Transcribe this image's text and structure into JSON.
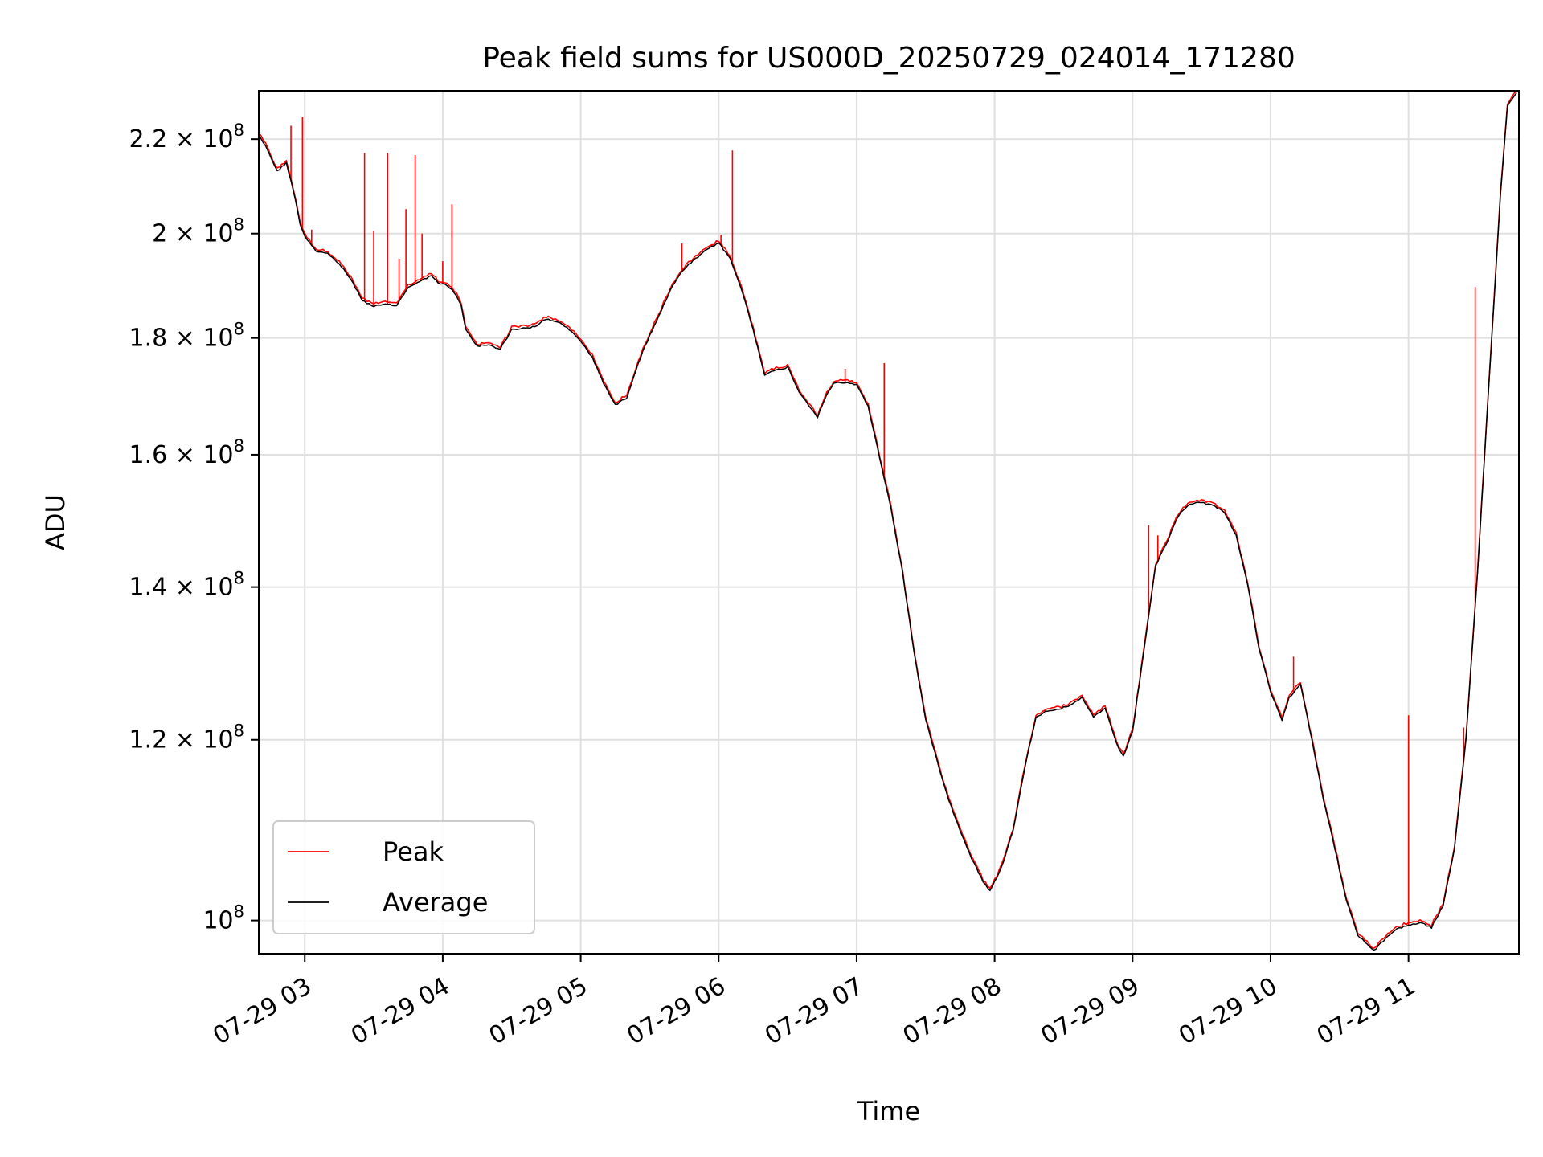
{
  "chart_data": {
    "type": "line",
    "title": "Peak field sums for US000D_20250729_024014_171280",
    "xlabel": "Time",
    "ylabel": "ADU",
    "yscale": "log",
    "xlim": [
      "2025-07-29 02:40",
      "2025-07-29 11:48"
    ],
    "ylim": [
      96700000,
      231000000
    ],
    "grid": true,
    "legend_position": "lower-left",
    "x_ticks": [
      {
        "t": "2025-07-29 03:00",
        "label": "07-29 03"
      },
      {
        "t": "2025-07-29 04:00",
        "label": "07-29 04"
      },
      {
        "t": "2025-07-29 05:00",
        "label": "07-29 05"
      },
      {
        "t": "2025-07-29 06:00",
        "label": "07-29 06"
      },
      {
        "t": "2025-07-29 07:00",
        "label": "07-29 07"
      },
      {
        "t": "2025-07-29 08:00",
        "label": "07-29 08"
      },
      {
        "t": "2025-07-29 09:00",
        "label": "07-29 09"
      },
      {
        "t": "2025-07-29 10:00",
        "label": "07-29 10"
      },
      {
        "t": "2025-07-29 11:00",
        "label": "07-29 11"
      }
    ],
    "y_ticks": [
      {
        "value": 100000000,
        "mantissa": "",
        "base": "10",
        "exp": "8"
      },
      {
        "value": 120000000,
        "mantissa": "1.2",
        "base": "10",
        "exp": "8"
      },
      {
        "value": 140000000,
        "mantissa": "1.4",
        "base": "10",
        "exp": "8"
      },
      {
        "value": 160000000,
        "mantissa": "1.6",
        "base": "10",
        "exp": "8"
      },
      {
        "value": 180000000,
        "mantissa": "1.8",
        "base": "10",
        "exp": "8"
      },
      {
        "value": 200000000,
        "mantissa": "2",
        "base": "10",
        "exp": "8"
      },
      {
        "value": 220000000,
        "mantissa": "2.2",
        "base": "10",
        "exp": "8"
      }
    ],
    "series": [
      {
        "name": "Average",
        "color": "#000000",
        "points": [
          [
            "2025-07-29 02:40",
            221000000
          ],
          [
            "2025-07-29 02:44",
            217500000
          ],
          [
            "2025-07-29 02:48",
            213000000
          ],
          [
            "2025-07-29 02:52",
            214800000
          ],
          [
            "2025-07-29 02:55",
            209000000
          ],
          [
            "2025-07-29 02:58",
            202000000
          ],
          [
            "2025-07-29 03:00",
            199500000
          ],
          [
            "2025-07-29 03:05",
            196500000
          ],
          [
            "2025-07-29 03:10",
            196000000
          ],
          [
            "2025-07-29 03:15",
            194000000
          ],
          [
            "2025-07-29 03:20",
            191000000
          ],
          [
            "2025-07-29 03:25",
            187000000
          ],
          [
            "2025-07-29 03:30",
            185800000
          ],
          [
            "2025-07-29 03:35",
            186200000
          ],
          [
            "2025-07-29 03:40",
            186000000
          ],
          [
            "2025-07-29 03:45",
            189500000
          ],
          [
            "2025-07-29 03:50",
            190500000
          ],
          [
            "2025-07-29 03:55",
            191800000
          ],
          [
            "2025-07-29 03:58",
            190200000
          ],
          [
            "2025-07-29 04:02",
            189800000
          ],
          [
            "2025-07-29 04:05",
            188500000
          ],
          [
            "2025-07-29 04:08",
            186000000
          ],
          [
            "2025-07-29 04:10",
            181500000
          ],
          [
            "2025-07-29 04:15",
            178500000
          ],
          [
            "2025-07-29 04:20",
            178800000
          ],
          [
            "2025-07-29 04:25",
            178000000
          ],
          [
            "2025-07-29 04:30",
            181500000
          ],
          [
            "2025-07-29 04:35",
            181800000
          ],
          [
            "2025-07-29 04:40",
            182000000
          ],
          [
            "2025-07-29 04:45",
            183500000
          ],
          [
            "2025-07-29 04:50",
            183000000
          ],
          [
            "2025-07-29 04:55",
            181500000
          ],
          [
            "2025-07-29 05:00",
            179500000
          ],
          [
            "2025-07-29 05:05",
            176500000
          ],
          [
            "2025-07-29 05:10",
            172000000
          ],
          [
            "2025-07-29 05:15",
            168200000
          ],
          [
            "2025-07-29 05:20",
            169500000
          ],
          [
            "2025-07-29 05:25",
            175500000
          ],
          [
            "2025-07-29 05:30",
            180500000
          ],
          [
            "2025-07-29 05:35",
            185000000
          ],
          [
            "2025-07-29 05:40",
            189800000
          ],
          [
            "2025-07-29 05:45",
            193000000
          ],
          [
            "2025-07-29 05:50",
            195000000
          ],
          [
            "2025-07-29 05:55",
            196800000
          ],
          [
            "2025-07-29 06:00",
            198200000
          ],
          [
            "2025-07-29 06:05",
            195000000
          ],
          [
            "2025-07-29 06:10",
            189000000
          ],
          [
            "2025-07-29 06:15",
            181500000
          ],
          [
            "2025-07-29 06:20",
            173500000
          ],
          [
            "2025-07-29 06:25",
            174200000
          ],
          [
            "2025-07-29 06:30",
            174800000
          ],
          [
            "2025-07-29 06:35",
            170500000
          ],
          [
            "2025-07-29 06:40",
            167800000
          ],
          [
            "2025-07-29 06:43",
            166200000
          ],
          [
            "2025-07-29 06:47",
            170000000
          ],
          [
            "2025-07-29 06:50",
            172000000
          ],
          [
            "2025-07-29 06:55",
            172000000
          ],
          [
            "2025-07-29 07:00",
            171800000
          ],
          [
            "2025-07-29 07:05",
            168000000
          ],
          [
            "2025-07-29 07:10",
            159500000
          ],
          [
            "2025-07-29 07:15",
            151500000
          ],
          [
            "2025-07-29 07:20",
            142000000
          ],
          [
            "2025-07-29 07:25",
            131000000
          ],
          [
            "2025-07-29 07:30",
            122500000
          ],
          [
            "2025-07-29 07:35",
            117500000
          ],
          [
            "2025-07-29 07:40",
            113000000
          ],
          [
            "2025-07-29 07:45",
            109500000
          ],
          [
            "2025-07-29 07:50",
            106500000
          ],
          [
            "2025-07-29 07:55",
            104000000
          ],
          [
            "2025-07-29 07:58",
            103000000
          ],
          [
            "2025-07-29 08:03",
            105500000
          ],
          [
            "2025-07-29 08:08",
            109500000
          ],
          [
            "2025-07-29 08:13",
            116500000
          ],
          [
            "2025-07-29 08:18",
            122800000
          ],
          [
            "2025-07-29 08:23",
            123600000
          ],
          [
            "2025-07-29 08:28",
            123800000
          ],
          [
            "2025-07-29 08:33",
            124200000
          ],
          [
            "2025-07-29 08:38",
            125200000
          ],
          [
            "2025-07-29 08:43",
            122800000
          ],
          [
            "2025-07-29 08:48",
            123900000
          ],
          [
            "2025-07-29 08:53",
            119500000
          ],
          [
            "2025-07-29 08:56",
            118000000
          ],
          [
            "2025-07-29 09:00",
            121000000
          ],
          [
            "2025-07-29 09:05",
            131500000
          ],
          [
            "2025-07-29 09:10",
            143000000
          ],
          [
            "2025-07-29 09:15",
            146500000
          ],
          [
            "2025-07-29 09:20",
            150500000
          ],
          [
            "2025-07-29 09:25",
            152300000
          ],
          [
            "2025-07-29 09:30",
            152500000
          ],
          [
            "2025-07-29 09:35",
            152000000
          ],
          [
            "2025-07-29 09:40",
            151000000
          ],
          [
            "2025-07-29 09:45",
            147500000
          ],
          [
            "2025-07-29 09:50",
            140500000
          ],
          [
            "2025-07-29 09:55",
            131500000
          ],
          [
            "2025-07-29 10:00",
            126000000
          ],
          [
            "2025-07-29 10:05",
            122300000
          ],
          [
            "2025-07-29 10:08",
            125200000
          ],
          [
            "2025-07-29 10:13",
            127000000
          ],
          [
            "2025-07-29 10:18",
            120000000
          ],
          [
            "2025-07-29 10:23",
            113000000
          ],
          [
            "2025-07-29 10:28",
            107500000
          ],
          [
            "2025-07-29 10:33",
            102000000
          ],
          [
            "2025-07-29 10:38",
            98500000
          ],
          [
            "2025-07-29 10:45",
            97000000
          ],
          [
            "2025-07-29 10:50",
            98200000
          ],
          [
            "2025-07-29 10:55",
            99200000
          ],
          [
            "2025-07-29 11:00",
            99500000
          ],
          [
            "2025-07-29 11:05",
            99800000
          ],
          [
            "2025-07-29 11:10",
            99300000
          ],
          [
            "2025-07-29 11:15",
            101500000
          ],
          [
            "2025-07-29 11:20",
            107500000
          ],
          [
            "2025-07-29 11:25",
            120000000
          ],
          [
            "2025-07-29 11:30",
            142000000
          ],
          [
            "2025-07-29 11:35",
            172000000
          ],
          [
            "2025-07-29 11:40",
            208000000
          ],
          [
            "2025-07-29 11:43",
            227500000
          ],
          [
            "2025-07-29 11:47",
            230500000
          ]
        ]
      },
      {
        "name": "Peak",
        "color": "#ff0000",
        "spikes": [
          [
            "2025-07-29 02:54",
            223000000
          ],
          [
            "2025-07-29 02:59",
            225000000
          ],
          [
            "2025-07-29 03:03",
            200800000
          ],
          [
            "2025-07-29 03:26",
            217000000
          ],
          [
            "2025-07-29 03:30",
            200500000
          ],
          [
            "2025-07-29 03:36",
            217000000
          ],
          [
            "2025-07-29 03:41",
            195000000
          ],
          [
            "2025-07-29 03:44",
            205000000
          ],
          [
            "2025-07-29 03:48",
            216500000
          ],
          [
            "2025-07-29 03:51",
            200000000
          ],
          [
            "2025-07-29 04:00",
            194500000
          ],
          [
            "2025-07-29 04:04",
            206000000
          ],
          [
            "2025-07-29 05:44",
            198000000
          ],
          [
            "2025-07-29 06:01",
            199800000
          ],
          [
            "2025-07-29 06:06",
            217500000
          ],
          [
            "2025-07-29 06:55",
            174500000
          ],
          [
            "2025-07-29 07:12",
            175500000
          ],
          [
            "2025-07-29 09:07",
            149000000
          ],
          [
            "2025-07-29 09:11",
            147500000
          ],
          [
            "2025-07-29 10:10",
            130500000
          ],
          [
            "2025-07-29 11:00",
            123000000
          ],
          [
            "2025-07-29 11:24",
            121500000
          ],
          [
            "2025-07-29 11:29",
            189500000
          ]
        ]
      }
    ]
  }
}
